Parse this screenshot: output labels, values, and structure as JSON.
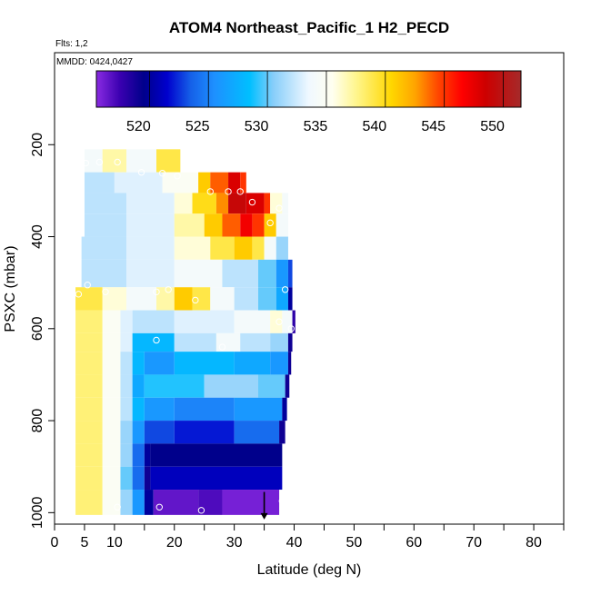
{
  "chart_data": {
    "type": "heatmap",
    "title": "ATOM4 Northeast_Pacific_1 H2_PECD",
    "flights_note": "Flts: 1,2",
    "dates_note": "MMDD: 0424,0427",
    "xlabel": "Latitude (deg N)",
    "ylabel": "PSXC (mbar)",
    "xlim": [
      0,
      85
    ],
    "ylim": [
      1025,
      0
    ],
    "x_ticks": [
      0,
      5,
      10,
      20,
      30,
      40,
      50,
      60,
      70,
      80
    ],
    "x_minor_ticks": [
      15,
      25,
      35,
      45,
      55,
      65,
      75,
      85
    ],
    "y_ticks": [
      200,
      400,
      600,
      800,
      1000
    ],
    "colorbar": {
      "range": [
        515.5,
        551.5
      ],
      "ticks": [
        520,
        525,
        530,
        535,
        540,
        545,
        550
      ],
      "stops": [
        {
          "value": 515.5,
          "color": "#8a2be2"
        },
        {
          "value": 517.5,
          "color": "#3a00b0"
        },
        {
          "value": 519.5,
          "color": "#00008b"
        },
        {
          "value": 521.5,
          "color": "#0000cd"
        },
        {
          "value": 523.5,
          "color": "#1560e8"
        },
        {
          "value": 525.5,
          "color": "#1e90ff"
        },
        {
          "value": 528.5,
          "color": "#00bfff"
        },
        {
          "value": 530.5,
          "color": "#87cefa"
        },
        {
          "value": 533.5,
          "color": "#f0f8ff"
        },
        {
          "value": 535.5,
          "color": "#fffff0"
        },
        {
          "value": 537.5,
          "color": "#fff68f"
        },
        {
          "value": 540.5,
          "color": "#ffd700"
        },
        {
          "value": 542.5,
          "color": "#ffa500"
        },
        {
          "value": 544.5,
          "color": "#ff4500"
        },
        {
          "value": 546.5,
          "color": "#ff0000"
        },
        {
          "value": 548.5,
          "color": "#cd0000"
        },
        {
          "value": 551.5,
          "color": "#a52a2a"
        }
      ]
    },
    "rows": [
      {
        "p_top": 210,
        "p_bot": 260,
        "cells": [
          [
            5,
            8,
            534
          ],
          [
            8,
            12,
            537
          ],
          [
            12,
            17,
            534
          ],
          [
            17,
            21,
            539
          ]
        ]
      },
      {
        "p_top": 260,
        "p_bot": 305,
        "cells": [
          [
            5,
            10,
            532
          ],
          [
            10,
            18,
            533
          ],
          [
            18,
            24,
            535
          ],
          [
            24,
            26,
            541
          ],
          [
            26,
            29,
            544
          ],
          [
            29,
            31,
            548
          ],
          [
            31,
            32,
            545
          ]
        ]
      },
      {
        "p_top": 305,
        "p_bot": 350,
        "cells": [
          [
            5,
            12,
            532
          ],
          [
            12,
            20,
            533
          ],
          [
            20,
            23,
            536
          ],
          [
            23,
            27,
            540
          ],
          [
            27,
            29,
            543
          ],
          [
            29,
            32,
            549
          ],
          [
            32,
            35,
            548
          ],
          [
            35,
            36,
            545
          ],
          [
            36,
            38,
            536
          ],
          [
            38,
            39,
            534
          ]
        ]
      },
      {
        "p_top": 350,
        "p_bot": 400,
        "cells": [
          [
            5,
            12,
            532
          ],
          [
            12,
            20,
            533
          ],
          [
            20,
            25,
            537
          ],
          [
            25,
            28,
            541
          ],
          [
            28,
            31,
            544
          ],
          [
            31,
            33,
            547
          ],
          [
            33,
            35,
            545
          ],
          [
            35,
            37,
            541
          ],
          [
            37,
            39,
            534
          ]
        ]
      },
      {
        "p_top": 400,
        "p_bot": 450,
        "cells": [
          [
            4.5,
            12,
            532
          ],
          [
            12,
            20,
            533
          ],
          [
            20,
            26,
            536
          ],
          [
            26,
            30,
            539
          ],
          [
            30,
            33,
            541
          ],
          [
            33,
            35,
            539
          ],
          [
            35,
            37,
            534
          ],
          [
            37,
            39,
            531
          ]
        ]
      },
      {
        "p_top": 450,
        "p_bot": 510,
        "cells": [
          [
            4.5,
            12,
            532
          ],
          [
            12,
            20,
            533
          ],
          [
            20,
            28,
            534
          ],
          [
            28,
            34,
            532
          ],
          [
            34,
            37,
            530
          ],
          [
            37,
            39,
            526
          ],
          [
            39,
            39.7,
            523
          ]
        ]
      },
      {
        "p_top": 510,
        "p_bot": 560,
        "cells": [
          [
            3.5,
            8,
            539
          ],
          [
            8,
            12,
            536
          ],
          [
            12,
            17,
            534
          ],
          [
            17,
            20,
            537
          ],
          [
            20,
            23,
            541
          ],
          [
            23,
            26,
            539
          ],
          [
            26,
            30,
            534
          ],
          [
            30,
            34,
            532
          ],
          [
            34,
            37,
            530
          ],
          [
            37,
            39,
            527
          ],
          [
            39,
            39.7,
            520
          ]
        ]
      },
      {
        "p_top": 560,
        "p_bot": 610,
        "cells": [
          [
            3.5,
            8,
            538
          ],
          [
            8,
            11,
            535
          ],
          [
            11,
            13,
            533
          ],
          [
            13,
            20,
            532
          ],
          [
            20,
            30,
            533
          ],
          [
            30,
            36,
            534
          ],
          [
            36,
            38,
            536
          ],
          [
            38,
            39.7,
            534
          ],
          [
            39.7,
            40.2,
            518
          ]
        ]
      },
      {
        "p_top": 610,
        "p_bot": 650,
        "cells": [
          [
            3.5,
            8,
            538
          ],
          [
            8,
            11,
            535
          ],
          [
            11,
            13,
            533
          ],
          [
            13,
            20,
            528
          ],
          [
            20,
            27,
            532
          ],
          [
            27,
            31,
            534
          ],
          [
            31,
            36,
            532
          ],
          [
            36,
            39,
            531
          ],
          [
            39,
            39.7,
            519
          ]
        ]
      },
      {
        "p_top": 650,
        "p_bot": 700,
        "cells": [
          [
            3.5,
            8,
            538
          ],
          [
            8,
            11,
            535
          ],
          [
            11,
            13,
            532
          ],
          [
            13,
            15,
            528
          ],
          [
            15,
            20,
            526
          ],
          [
            20,
            30,
            528
          ],
          [
            30,
            36,
            527
          ],
          [
            36,
            39,
            526
          ],
          [
            39,
            39.5,
            519
          ]
        ]
      },
      {
        "p_top": 700,
        "p_bot": 750,
        "cells": [
          [
            3.5,
            8,
            538
          ],
          [
            8,
            11,
            535
          ],
          [
            11,
            13,
            532
          ],
          [
            13,
            15,
            527
          ],
          [
            15,
            25,
            529
          ],
          [
            25,
            34,
            531
          ],
          [
            34,
            38.5,
            530
          ],
          [
            38.5,
            39.2,
            519
          ]
        ]
      },
      {
        "p_top": 750,
        "p_bot": 800,
        "cells": [
          [
            3.5,
            8,
            538
          ],
          [
            8,
            11,
            535
          ],
          [
            11,
            13,
            532
          ],
          [
            13,
            15,
            528
          ],
          [
            15,
            20,
            526
          ],
          [
            20,
            30,
            525
          ],
          [
            30,
            38,
            526
          ],
          [
            38,
            38.8,
            520
          ]
        ]
      },
      {
        "p_top": 800,
        "p_bot": 850,
        "cells": [
          [
            3.5,
            8,
            538
          ],
          [
            8,
            11,
            535
          ],
          [
            11,
            13,
            531
          ],
          [
            13,
            15,
            526
          ],
          [
            15,
            20,
            523
          ],
          [
            20,
            30,
            522
          ],
          [
            30,
            37.5,
            524
          ],
          [
            37.5,
            38.5,
            519
          ]
        ]
      },
      {
        "p_top": 850,
        "p_bot": 900,
        "cells": [
          [
            3.5,
            8,
            538
          ],
          [
            8,
            11,
            535
          ],
          [
            11,
            13,
            531
          ],
          [
            13,
            15,
            524
          ],
          [
            15,
            16,
            520
          ],
          [
            16,
            38,
            519.5
          ]
        ]
      },
      {
        "p_top": 900,
        "p_bot": 950,
        "cells": [
          [
            3.5,
            8,
            538
          ],
          [
            8,
            11,
            535
          ],
          [
            11,
            13,
            530
          ],
          [
            13,
            15,
            524
          ],
          [
            15,
            16,
            519
          ],
          [
            16,
            38,
            521
          ]
        ]
      },
      {
        "p_top": 950,
        "p_bot": 1005,
        "cells": [
          [
            3.5,
            8,
            538
          ],
          [
            8,
            11,
            535
          ],
          [
            11,
            13,
            531
          ],
          [
            13,
            15,
            526
          ],
          [
            15,
            16.5,
            520
          ],
          [
            16.5,
            24,
            516.5
          ],
          [
            24,
            28,
            517
          ],
          [
            28,
            37.5,
            516
          ]
        ]
      }
    ],
    "markers": [
      [
        5.2,
        240
      ],
      [
        7.5,
        238
      ],
      [
        10.5,
        238
      ],
      [
        14.5,
        260
      ],
      [
        18,
        262
      ],
      [
        20.5,
        268
      ],
      [
        26,
        302
      ],
      [
        29,
        302
      ],
      [
        31,
        302
      ],
      [
        33,
        325
      ],
      [
        36,
        370
      ],
      [
        37.5,
        338
      ],
      [
        5.5,
        505
      ],
      [
        4,
        525
      ],
      [
        8.5,
        520
      ],
      [
        17,
        520
      ],
      [
        19,
        515
      ],
      [
        23.5,
        538
      ],
      [
        38.5,
        515
      ],
      [
        37.5,
        585
      ],
      [
        39.5,
        600
      ],
      [
        17,
        625
      ],
      [
        28,
        640
      ],
      [
        10.5,
        988
      ],
      [
        17.5,
        988
      ],
      [
        24.5,
        995
      ],
      [
        38,
        975
      ]
    ],
    "arrow": {
      "x": 35,
      "p_from": 955,
      "p_to": 1015
    }
  }
}
